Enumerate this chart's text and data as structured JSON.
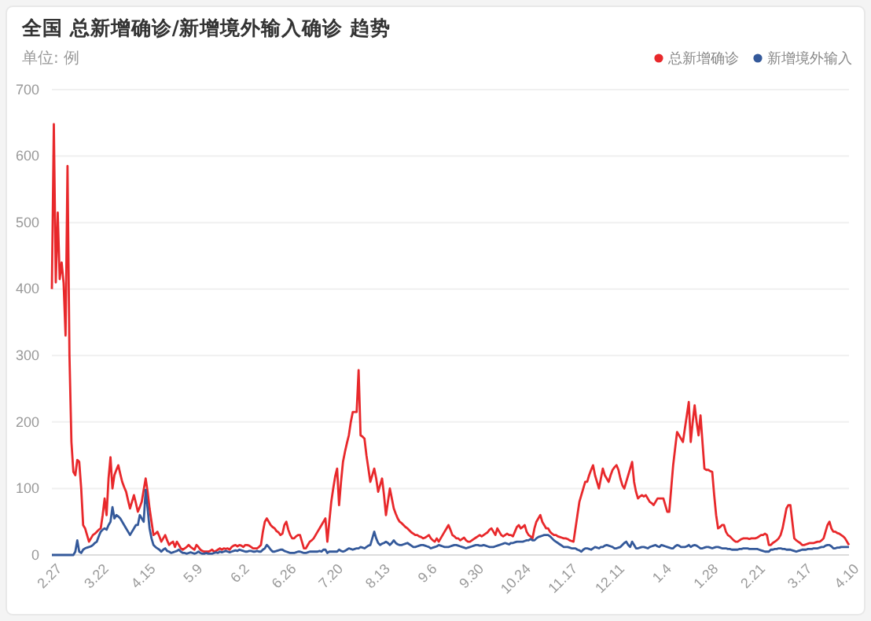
{
  "chart_data": {
    "type": "line",
    "title": "全国 总新增确诊/新增境外输入确诊 趋势",
    "subtitle": "单位: 例",
    "categories": [
      "2.27",
      null,
      null,
      null,
      null,
      null,
      null,
      null,
      null,
      null,
      null,
      null,
      null,
      null,
      null,
      null,
      null,
      null,
      null,
      null,
      null,
      null,
      null,
      null,
      "3.22",
      null,
      null,
      null,
      null,
      null,
      null,
      null,
      null,
      null,
      null,
      null,
      null,
      null,
      null,
      null,
      null,
      null,
      null,
      null,
      null,
      null,
      null,
      null,
      "4.15",
      null,
      null,
      null,
      null,
      null,
      null,
      null,
      null,
      null,
      null,
      null,
      null,
      null,
      null,
      null,
      null,
      null,
      null,
      null,
      null,
      null,
      null,
      null,
      "5.9",
      null,
      null,
      null,
      null,
      null,
      null,
      null,
      null,
      null,
      null,
      null,
      null,
      null,
      null,
      null,
      null,
      null,
      null,
      null,
      null,
      null,
      null,
      null,
      "6.2",
      null,
      null,
      null,
      null,
      null,
      null,
      null,
      null,
      null,
      null,
      null,
      null,
      null,
      null,
      null,
      null,
      null,
      null,
      null,
      null,
      null,
      null,
      null,
      "6.26",
      null,
      null,
      null,
      null,
      null,
      null,
      null,
      null,
      null,
      null,
      null,
      null,
      null,
      null,
      null,
      null,
      null,
      null,
      null,
      null,
      null,
      null,
      null,
      "7.20",
      null,
      null,
      null,
      null,
      null,
      null,
      null,
      null,
      null,
      null,
      null,
      null,
      null,
      null,
      null,
      null,
      null,
      null,
      null,
      null,
      null,
      null,
      null,
      "8.13",
      null,
      null,
      null,
      null,
      null,
      null,
      null,
      null,
      null,
      null,
      null,
      null,
      null,
      null,
      null,
      null,
      null,
      null,
      null,
      null,
      null,
      null,
      null,
      "9.6",
      null,
      null,
      null,
      null,
      null,
      null,
      null,
      null,
      null,
      null,
      null,
      null,
      null,
      null,
      null,
      null,
      null,
      null,
      null,
      null,
      null,
      null,
      null,
      "9.30",
      null,
      null,
      null,
      null,
      null,
      null,
      null,
      null,
      null,
      null,
      null,
      null,
      null,
      null,
      null,
      null,
      null,
      null,
      null,
      null,
      null,
      null,
      null,
      "10.24",
      null,
      null,
      null,
      null,
      null,
      null,
      null,
      null,
      null,
      null,
      null,
      null,
      null,
      null,
      null,
      null,
      null,
      null,
      null,
      null,
      null,
      null,
      null,
      "11.17",
      null,
      null,
      null,
      null,
      null,
      null,
      null,
      null,
      null,
      null,
      null,
      null,
      null,
      null,
      null,
      null,
      null,
      null,
      null,
      null,
      null,
      null,
      null,
      "12.11",
      null,
      null,
      null,
      null,
      null,
      null,
      null,
      null,
      null,
      null,
      null,
      null,
      null,
      null,
      null,
      null,
      null,
      null,
      null,
      null,
      null,
      null,
      null,
      "1.4",
      null,
      null,
      null,
      null,
      null,
      null,
      null,
      null,
      null,
      null,
      null,
      null,
      null,
      null,
      null,
      null,
      null,
      null,
      null,
      null,
      null,
      null,
      null,
      "1.28",
      null,
      null,
      null,
      null,
      null,
      null,
      null,
      null,
      null,
      null,
      null,
      null,
      null,
      null,
      null,
      null,
      null,
      null,
      null,
      null,
      null,
      null,
      null,
      "2.21",
      null,
      null,
      null,
      null,
      null,
      null,
      null,
      null,
      null,
      null,
      null,
      null,
      null,
      null,
      null,
      null,
      null,
      null,
      null,
      null,
      null,
      null,
      null,
      "3.17",
      null,
      null,
      null,
      null,
      null,
      null,
      null,
      null,
      null,
      null,
      null,
      null,
      null,
      null,
      null,
      null,
      null,
      null,
      null,
      null,
      null,
      null,
      null,
      "4.10"
    ],
    "series": [
      {
        "name": "总新增确诊",
        "color": "#e8282b",
        "values": [
          400,
          648,
          410,
          515,
          415,
          440,
          409,
          330,
          585,
          300,
          170,
          125,
          120,
          143,
          140,
          100,
          45,
          40,
          30,
          20,
          25,
          30,
          32,
          35,
          38,
          40,
          60,
          85,
          60,
          115,
          147,
          100,
          120,
          128,
          135,
          122,
          110,
          102,
          95,
          82,
          70,
          80,
          90,
          78,
          65,
          72,
          80,
          98,
          115,
          95,
          70,
          50,
          30,
          32,
          35,
          28,
          20,
          25,
          30,
          22,
          15,
          18,
          20,
          12,
          20,
          15,
          10,
          8,
          10,
          12,
          15,
          12,
          10,
          8,
          15,
          12,
          8,
          6,
          5,
          5,
          5,
          6,
          8,
          5,
          6,
          8,
          10,
          8,
          10,
          9,
          10,
          8,
          12,
          14,
          15,
          13,
          15,
          14,
          12,
          15,
          15,
          14,
          12,
          10,
          10,
          10,
          12,
          15,
          35,
          50,
          55,
          50,
          45,
          42,
          40,
          36,
          34,
          30,
          32,
          45,
          50,
          38,
          30,
          25,
          25,
          28,
          30,
          30,
          20,
          10,
          10,
          15,
          20,
          22,
          25,
          30,
          35,
          40,
          45,
          50,
          55,
          20,
          50,
          80,
          100,
          118,
          130,
          75,
          110,
          140,
          155,
          168,
          180,
          200,
          215,
          215,
          215,
          278,
          180,
          178,
          175,
          150,
          130,
          110,
          120,
          130,
          115,
          95,
          105,
          115,
          90,
          60,
          80,
          100,
          85,
          70,
          62,
          55,
          50,
          48,
          45,
          42,
          40,
          37,
          34,
          32,
          30,
          30,
          28,
          27,
          25,
          26,
          28,
          30,
          25,
          22,
          20,
          25,
          20,
          25,
          30,
          35,
          40,
          45,
          38,
          30,
          28,
          25,
          25,
          22,
          24,
          26,
          22,
          20,
          20,
          22,
          24,
          26,
          28,
          30,
          28,
          30,
          32,
          34,
          38,
          40,
          35,
          30,
          40,
          35,
          30,
          28,
          30,
          32,
          30,
          30,
          28,
          35,
          42,
          45,
          40,
          42,
          45,
          35,
          30,
          28,
          25,
          40,
          50,
          55,
          60,
          50,
          45,
          40,
          40,
          35,
          32,
          30,
          30,
          28,
          27,
          26,
          25,
          25,
          24,
          22,
          21,
          20,
          40,
          60,
          80,
          90,
          100,
          110,
          110,
          120,
          128,
          135,
          120,
          110,
          100,
          115,
          130,
          120,
          115,
          110,
          120,
          128,
          132,
          135,
          128,
          115,
          105,
          100,
          110,
          120,
          130,
          140,
          110,
          95,
          85,
          88,
          90,
          88,
          90,
          85,
          80,
          78,
          75,
          80,
          85,
          85,
          85,
          85,
          75,
          65,
          65,
          100,
          135,
          160,
          185,
          180,
          175,
          170,
          190,
          210,
          230,
          170,
          200,
          225,
          200,
          180,
          210,
          170,
          130,
          128,
          128,
          126,
          125,
          90,
          60,
          40,
          42,
          45,
          45,
          35,
          30,
          28,
          25,
          22,
          20,
          20,
          22,
          24,
          25,
          25,
          25,
          24,
          25,
          25,
          25,
          26,
          28,
          30,
          30,
          32,
          30,
          15,
          15,
          18,
          20,
          22,
          25,
          30,
          40,
          55,
          70,
          75,
          75,
          50,
          25,
          22,
          20,
          18,
          15,
          15,
          16,
          17,
          18,
          18,
          18,
          19,
          20,
          20,
          22,
          25,
          35,
          45,
          50,
          40,
          35,
          35,
          33,
          32,
          30,
          28,
          25,
          20,
          15
        ]
      },
      {
        "name": "新增境外输入",
        "color": "#34599a",
        "values": [
          0,
          0,
          0,
          0,
          0,
          0,
          0,
          0,
          0,
          0,
          0,
          0,
          5,
          22,
          5,
          3,
          8,
          10,
          11,
          12,
          13,
          15,
          18,
          20,
          28,
          35,
          38,
          40,
          38,
          45,
          50,
          72,
          55,
          60,
          58,
          55,
          50,
          45,
          40,
          35,
          30,
          35,
          40,
          45,
          45,
          60,
          55,
          50,
          98,
          70,
          40,
          25,
          15,
          12,
          10,
          8,
          5,
          8,
          10,
          6,
          5,
          3,
          4,
          5,
          6,
          8,
          5,
          3,
          3,
          2,
          3,
          4,
          3,
          2,
          3,
          5,
          3,
          2,
          2,
          3,
          2,
          2,
          2,
          3,
          4,
          3,
          5,
          4,
          5,
          6,
          5,
          4,
          5,
          6,
          7,
          6,
          8,
          7,
          6,
          5,
          5,
          6,
          6,
          5,
          5,
          6,
          5,
          5,
          8,
          10,
          15,
          12,
          8,
          5,
          5,
          6,
          7,
          8,
          8,
          6,
          5,
          4,
          3,
          3,
          3,
          4,
          5,
          5,
          4,
          3,
          3,
          4,
          5,
          5,
          5,
          5,
          5,
          6,
          5,
          8,
          8,
          3,
          5,
          5,
          5,
          5,
          5,
          8,
          6,
          5,
          6,
          8,
          10,
          9,
          8,
          9,
          10,
          10,
          12,
          11,
          10,
          12,
          14,
          15,
          25,
          35,
          25,
          18,
          15,
          17,
          18,
          20,
          18,
          15,
          18,
          22,
          18,
          16,
          15,
          15,
          16,
          17,
          18,
          16,
          14,
          12,
          12,
          13,
          14,
          15,
          15,
          14,
          13,
          12,
          10,
          11,
          12,
          13,
          15,
          14,
          13,
          12,
          12,
          12,
          13,
          14,
          15,
          15,
          14,
          13,
          12,
          11,
          10,
          11,
          12,
          13,
          14,
          15,
          15,
          14,
          14,
          15,
          14,
          13,
          12,
          12,
          12,
          13,
          14,
          15,
          16,
          17,
          18,
          17,
          16,
          18,
          18,
          19,
          20,
          20,
          20,
          20,
          21,
          22,
          22,
          24,
          22,
          22,
          25,
          27,
          28,
          29,
          30,
          30,
          30,
          28,
          25,
          22,
          20,
          18,
          16,
          14,
          12,
          12,
          12,
          11,
          10,
          10,
          10,
          8,
          7,
          5,
          8,
          10,
          10,
          9,
          8,
          10,
          12,
          11,
          10,
          12,
          12,
          14,
          15,
          14,
          13,
          12,
          10,
          10,
          11,
          12,
          15,
          18,
          20,
          15,
          12,
          20,
          15,
          10,
          10,
          11,
          12,
          12,
          11,
          10,
          12,
          13,
          14,
          15,
          13,
          12,
          15,
          14,
          13,
          12,
          11,
          10,
          10,
          13,
          15,
          14,
          12,
          12,
          12,
          13,
          15,
          12,
          14,
          15,
          14,
          12,
          10,
          10,
          11,
          12,
          12,
          11,
          10,
          11,
          12,
          12,
          11,
          10,
          10,
          10,
          9,
          9,
          8,
          8,
          8,
          8,
          9,
          9,
          10,
          10,
          10,
          9,
          9,
          9,
          9,
          9,
          8,
          7,
          6,
          5,
          5,
          5,
          8,
          8,
          9,
          9,
          10,
          10,
          9,
          9,
          8,
          8,
          8,
          7,
          6,
          5,
          6,
          7,
          8,
          8,
          8,
          9,
          9,
          9,
          10,
          10,
          10,
          11,
          12,
          12,
          14,
          15,
          15,
          13,
          10,
          10,
          11,
          11,
          12,
          12,
          12,
          12,
          12
        ]
      }
    ],
    "ylim": [
      0,
      700
    ],
    "yticks": [
      0,
      100,
      200,
      300,
      400,
      500,
      600,
      700
    ],
    "grid": "y",
    "legend": "top right",
    "marker": "none",
    "line_style": "solid"
  }
}
